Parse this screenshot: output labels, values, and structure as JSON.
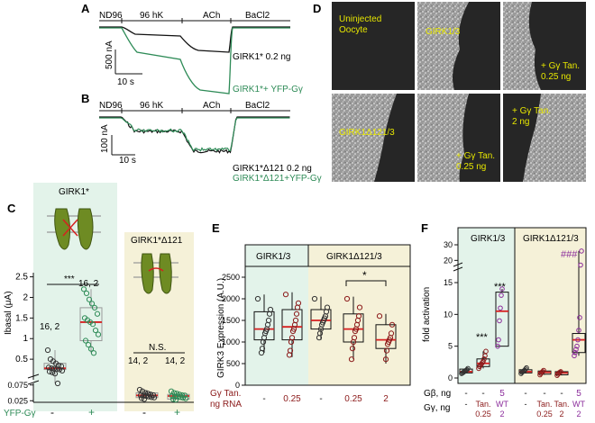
{
  "panels": {
    "A": {
      "letter": "A",
      "segments": [
        "ND96",
        "96 hK",
        "ACh",
        "BaCl2"
      ],
      "scale_current": "500 nA",
      "scale_time": "10 s",
      "trace_labels": [
        "GIRK1* 0.2 ng",
        "GIRK1*+ YFP-Gγ"
      ]
    },
    "B": {
      "letter": "B",
      "segments": [
        "ND96",
        "96 hK",
        "ACh",
        "BaCl2"
      ],
      "scale_current": "100 nA",
      "scale_time": "10 s",
      "trace_labels": [
        "GIRK1*Δ121 0.2 ng",
        "GIRK1*Δ121+YFP-Gγ"
      ]
    },
    "C": {
      "letter": "C",
      "group1_title": "GIRK1*",
      "group2_title": "GIRK1*Δ121",
      "ylabel": "Ibasal (μA)",
      "yticks_top": [
        "2.5",
        "2",
        "1.5",
        "1",
        "0.5"
      ],
      "yticks_bottom": [
        "0.075",
        "0.025"
      ],
      "sig_group1": "***",
      "sig_group2": "N.S.",
      "n_labels": [
        "16, 2",
        "16, 2",
        "14, 2",
        "14, 2"
      ],
      "row_label": "YFP-Gγ",
      "conditions": [
        "-",
        "+",
        "-",
        "+"
      ]
    },
    "D": {
      "letter": "D",
      "tiles": [
        "Uninjected\nOocyte",
        "GIRK1/3",
        "+ Gγ Tan.\n0.25 ng",
        "GIRK1Δ121/3",
        "+ Gγ Tan.\n0.25 ng",
        "+ Gγ Tan.\n2 ng"
      ]
    },
    "E": {
      "letter": "E",
      "group1_title": "GIRK1/3",
      "group2_title": "GIRK1Δ121/3",
      "ylabel": "GIRK3 Expression (A.U.)",
      "yticks": [
        "0",
        "500",
        "1000",
        "1500",
        "2000",
        "2500"
      ],
      "sig": "*",
      "row_label_1": "Gγ Tan.",
      "row_label_2": "ng RNA",
      "conditions": [
        "-",
        "0.25",
        "-",
        "0.25",
        "2"
      ]
    },
    "F": {
      "letter": "F",
      "group1_title": "GIRK1/3",
      "group2_title": "GIRK1Δ121/3",
      "ylabel": "fold activation",
      "yticks_top": [
        "30",
        "20"
      ],
      "yticks_bottom": [
        "15",
        "10",
        "5",
        "0"
      ],
      "sig": [
        "***",
        "***",
        "###"
      ],
      "row1_label": "Gβ, ng",
      "row1": [
        "-",
        "-",
        "5",
        "-",
        "-",
        "-",
        "5"
      ],
      "row2_label": "Gγ, ng",
      "row2_top": [
        "-",
        "Tan.",
        "WT",
        "-",
        "Tan.",
        "Tan.",
        "WT"
      ],
      "row2_bottom": [
        "",
        "0.25",
        "2",
        "",
        "0.25",
        "2",
        "2"
      ]
    }
  },
  "colors": {
    "green": "#2e8b57",
    "red": "#d62020",
    "maroon": "#8b1a1a",
    "purple": "#8b2c9b",
    "panel_green": "#e3f3ea",
    "panel_yellow": "#f5f1d8"
  },
  "chart_data": [
    {
      "panel": "C",
      "type": "scatter",
      "ylabel": "Ibasal (μA)",
      "categories": [
        "GIRK1* -",
        "GIRK1* +",
        "GIRK1*Δ121 -",
        "GIRK1*Δ121 +"
      ],
      "medians": [
        0.28,
        1.4,
        0.042,
        0.04
      ],
      "boxes": [
        [
          0.25,
          0.4
        ],
        [
          0.95,
          1.75
        ],
        [
          0.035,
          0.05
        ],
        [
          0.03,
          0.045
        ]
      ],
      "points": [
        [
          0.72,
          0.5,
          0.45,
          0.4,
          0.35,
          0.33,
          0.3,
          0.28,
          0.27,
          0.26,
          0.25,
          0.22,
          0.2,
          0.18,
          0.15,
          0.08
        ],
        [
          2.2,
          2.1,
          1.95,
          1.85,
          1.75,
          1.6,
          1.5,
          1.45,
          1.4,
          1.35,
          1.2,
          1.1,
          0.95,
          0.85,
          0.75,
          0.65
        ],
        [
          0.06,
          0.055,
          0.05,
          0.048,
          0.045,
          0.043,
          0.042,
          0.041,
          0.04,
          0.038,
          0.036,
          0.035,
          0.033,
          0.03
        ],
        [
          0.055,
          0.05,
          0.048,
          0.045,
          0.043,
          0.042,
          0.04,
          0.039,
          0.038,
          0.036,
          0.034,
          0.032,
          0.03,
          0.028
        ]
      ]
    },
    {
      "panel": "E",
      "type": "scatter",
      "ylabel": "GIRK3 Expression (A.U.)",
      "ylim": [
        0,
        2500
      ],
      "categories": [
        "GIRK1/3 -",
        "GIRK1/3 0.25",
        "GIRK1Δ121/3 -",
        "GIRK1Δ121/3 0.25",
        "GIRK1Δ121/3 2"
      ],
      "medians": [
        1300,
        1350,
        1500,
        1300,
        1050
      ],
      "boxes": [
        [
          1050,
          1700
        ],
        [
          1050,
          1750
        ],
        [
          1300,
          1750
        ],
        [
          1000,
          1650
        ],
        [
          850,
          1400
        ]
      ],
      "whiskers": [
        [
          750,
          2100
        ],
        [
          650,
          2150
        ],
        [
          1050,
          2050
        ],
        [
          600,
          2050
        ],
        [
          500,
          1650
        ]
      ],
      "points": [
        [
          2000,
          1750,
          1650,
          1500,
          1400,
          1300,
          1250,
          1200,
          1100,
          1000,
          850,
          750
        ],
        [
          2100,
          1900,
          1800,
          1650,
          1500,
          1400,
          1300,
          1250,
          1100,
          1000,
          800,
          700
        ],
        [
          2000,
          1800,
          1700,
          1600,
          1550,
          1500,
          1450,
          1400,
          1300,
          1200,
          1100
        ],
        [
          2000,
          1800,
          1600,
          1500,
          1400,
          1300,
          1250,
          1100,
          1000,
          850,
          600
        ],
        [
          1600,
          1400,
          1200,
          1100,
          1050,
          1000,
          950,
          800,
          600
        ]
      ]
    },
    {
      "panel": "F",
      "type": "scatter",
      "ylabel": "fold activation",
      "categories": [
        "GIRK1/3 -",
        "GIRK1/3 Tan 0.25",
        "GIRK1/3 WT",
        "GIRK1Δ121/3 -",
        "GIRK1Δ121/3 Tan 0.25",
        "GIRK1Δ121/3 Tan 2",
        "GIRK1Δ121/3 WT"
      ],
      "medians": [
        1.0,
        2.3,
        10.5,
        1.0,
        0.9,
        0.8,
        6.0
      ],
      "boxes": [
        [
          0.8,
          1.4
        ],
        [
          1.8,
          3.0
        ],
        [
          5.0,
          13.5
        ],
        [
          0.8,
          1.3
        ],
        [
          0.6,
          1.1
        ],
        [
          0.5,
          1.0
        ],
        [
          4.0,
          7.0
        ]
      ],
      "points": [
        [
          0.7,
          0.8,
          0.9,
          1.0,
          1.1,
          1.2,
          1.3,
          1.5
        ],
        [
          1.5,
          1.8,
          2.0,
          2.2,
          2.4,
          2.6,
          3.0,
          3.5,
          4.2
        ],
        [
          5.0,
          6.0,
          9.0,
          11.0,
          13.0,
          14.0
        ],
        [
          0.7,
          0.9,
          1.0,
          1.1,
          1.2,
          1.4,
          1.6
        ],
        [
          0.5,
          0.7,
          0.9,
          1.0,
          1.2
        ],
        [
          0.4,
          0.6,
          0.8,
          0.9,
          1.0
        ],
        [
          3.5,
          4.0,
          4.5,
          5.0,
          6.0,
          7.5,
          9.5,
          17.0,
          26.0
        ]
      ]
    }
  ]
}
